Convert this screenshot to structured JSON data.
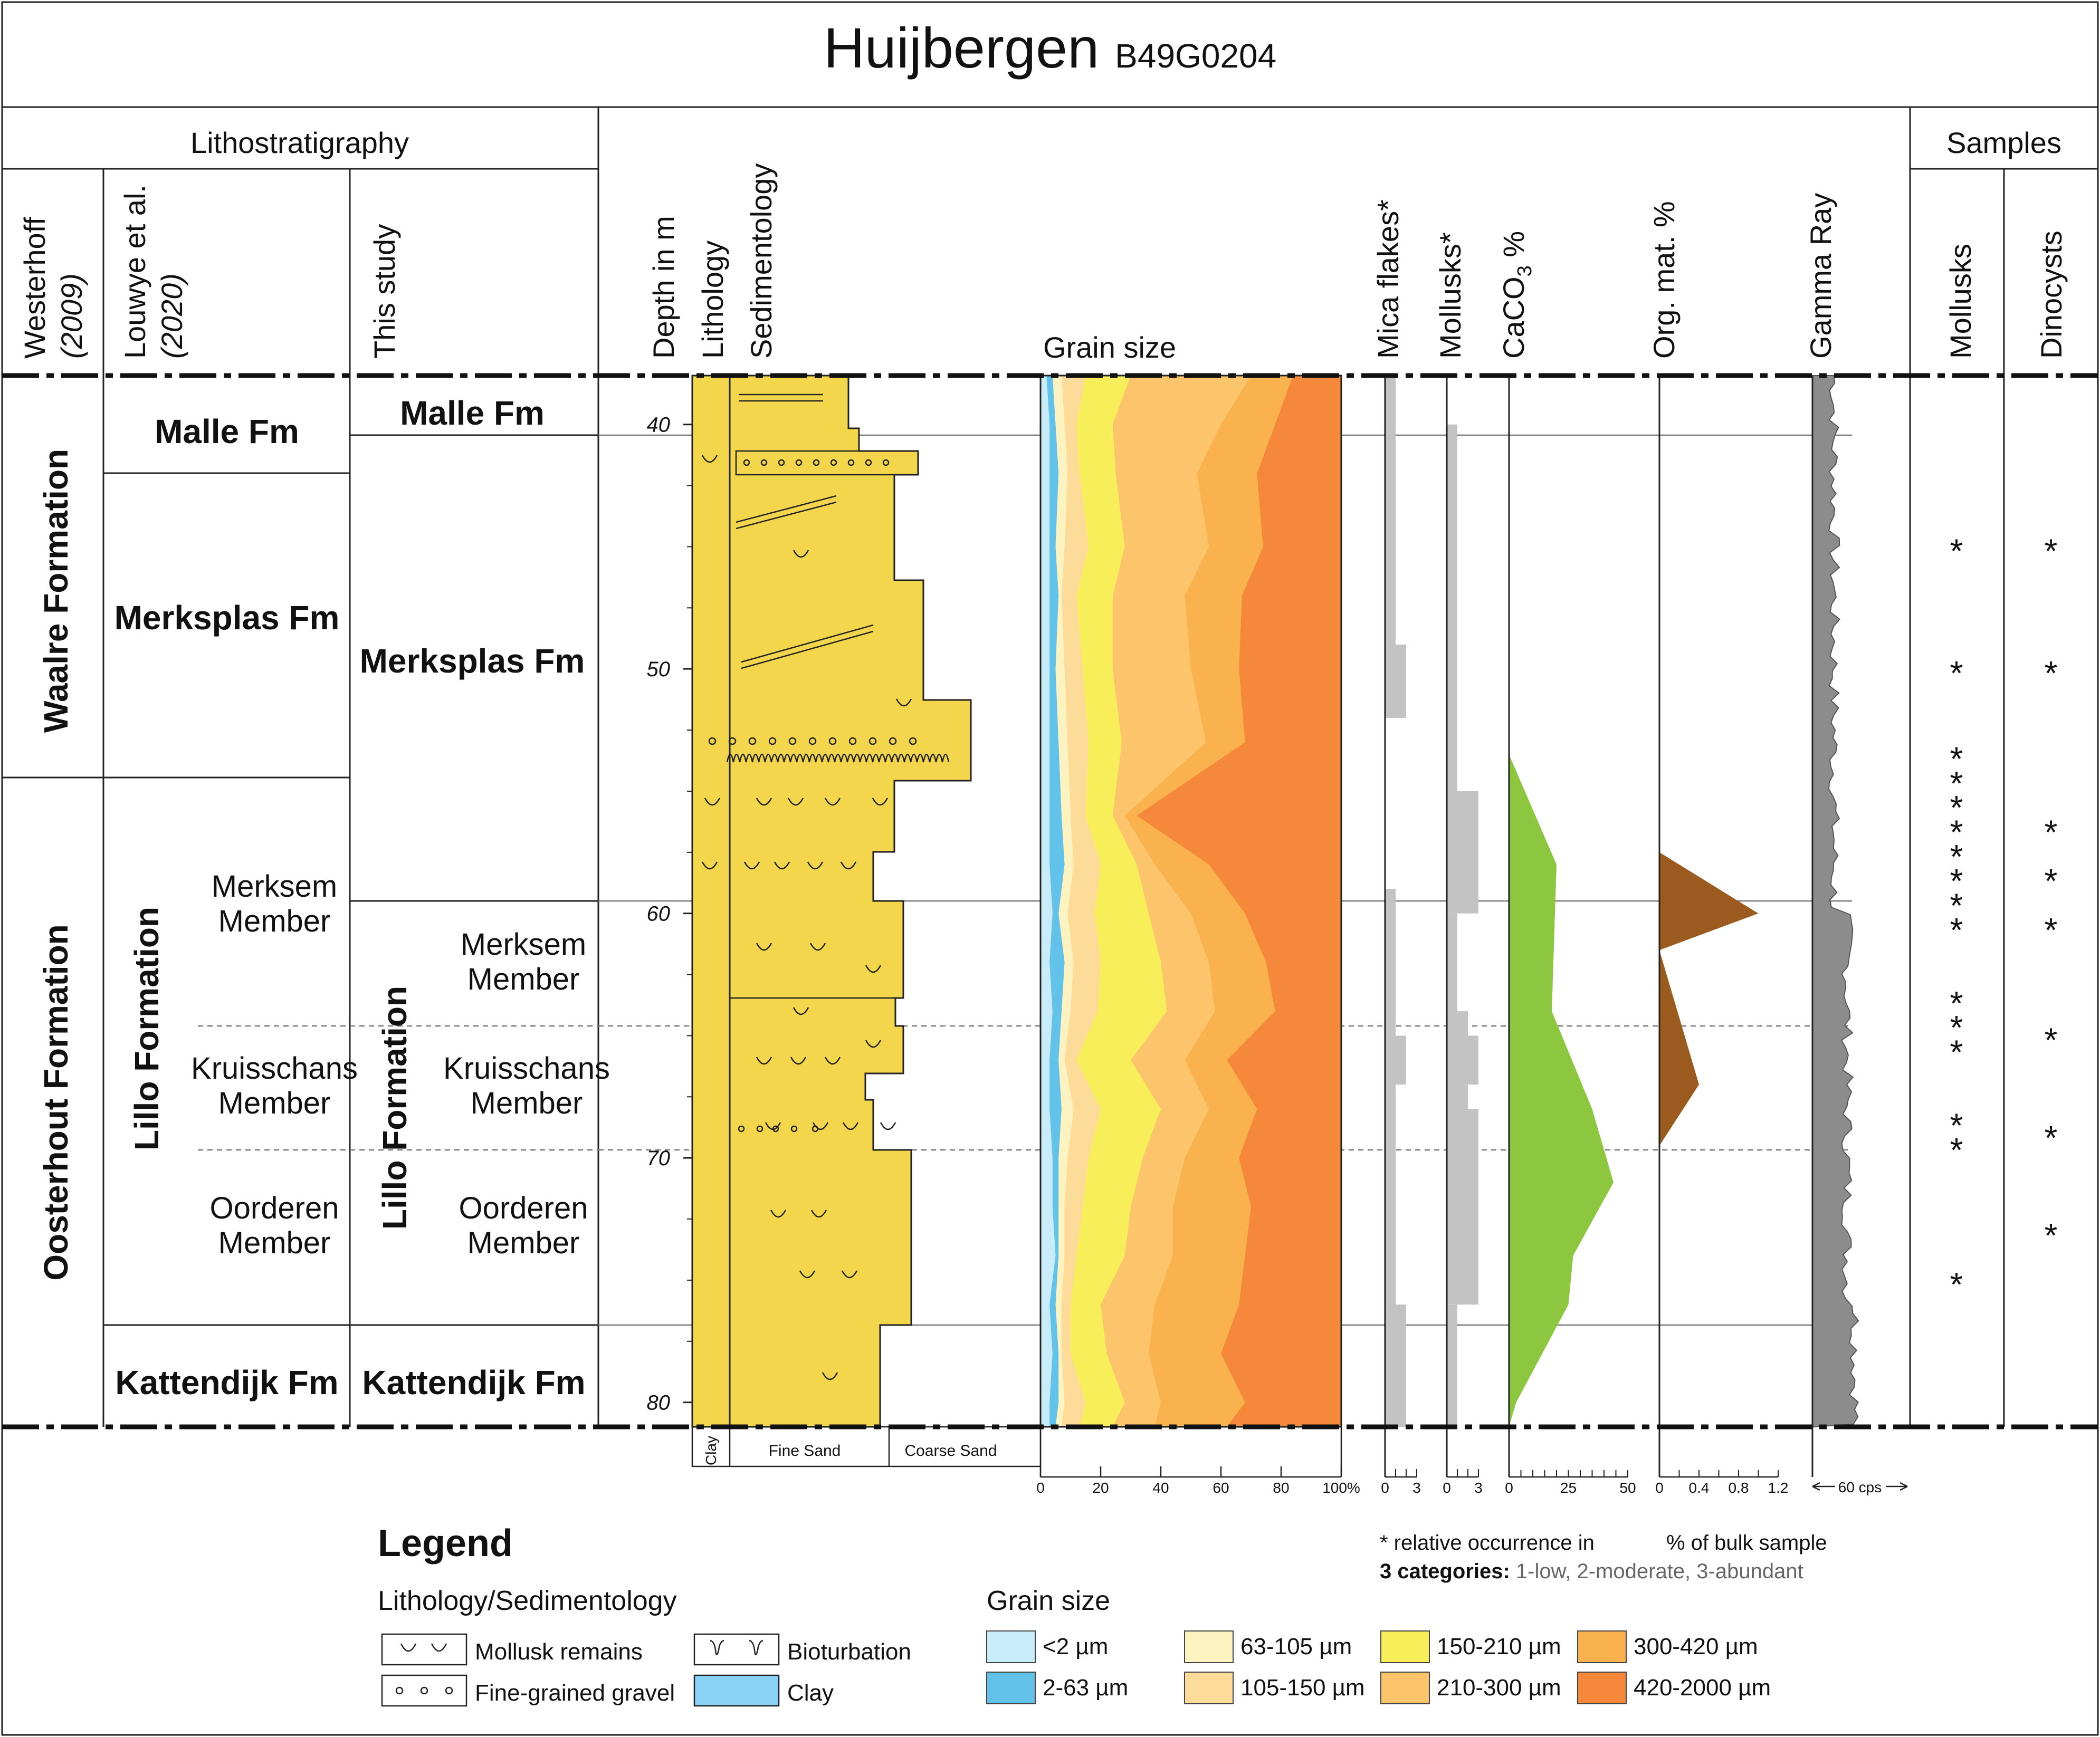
{
  "title": {
    "main": "Huijbergen",
    "code": "B49G0204"
  },
  "headers": {
    "lithostratigraphy": "Lithostratigraphy",
    "samples": "Samples",
    "westerhoff": "Westerhoff",
    "westerhoff_year": "(2009)",
    "louwye": "Louwye et al.",
    "louwye_year": "(2020)",
    "this_study": "This study",
    "depth": "Depth in m",
    "lithology": "Lithology",
    "sedimentology": "Sedimentology",
    "grain_size": "Grain size",
    "mica": "Mica flakes*",
    "mollusks_col": "Mollusks*",
    "caco3": "CaCO",
    "caco3_sub": "3",
    "caco3_unit": " %",
    "orgmat": "Org. mat. %",
    "gamma": "Gamma Ray",
    "mollusks_sample": "Mollusks",
    "dinocysts": "Dinocysts"
  },
  "westerhoff_units": [
    "Waalre Formation",
    "Oosterhout Formation"
  ],
  "louwye_units": {
    "malle": "Malle Fm",
    "merksplas": "Merksplas Fm",
    "lillo": "Lillo Formation",
    "merksem": [
      "Merksem",
      "Member"
    ],
    "kruisschans": [
      "Kruisschans",
      "Member"
    ],
    "oorderen": [
      "Oorderen",
      "Member"
    ],
    "kattendijk": "Kattendijk Fm"
  },
  "study_units": {
    "malle": "Malle Fm",
    "merksplas": "Merksplas Fm",
    "lillo": "Lillo Formation",
    "merksem": [
      "Merksem",
      "Member"
    ],
    "kruisschans": [
      "Kruisschans",
      "Member"
    ],
    "oorderen": [
      "Oorderen",
      "Member"
    ],
    "kattendijk": "Kattendijk Fm"
  },
  "depth_ticks": [
    "40",
    "50",
    "60",
    "70",
    "80"
  ],
  "lith_scale": {
    "clay": "Clay",
    "fine": "Fine Sand",
    "coarse": "Coarse Sand"
  },
  "grain_axis": [
    "0",
    "20",
    "40",
    "60",
    "80",
    "100%"
  ],
  "mica_axis": [
    "0",
    "3"
  ],
  "moll_axis": [
    "0",
    "3"
  ],
  "caco3_axis": [
    "0",
    "25",
    "50"
  ],
  "org_axis": [
    "0",
    "0.4",
    "0.8",
    "1.2"
  ],
  "gamma_axis": "60 cps",
  "notes": {
    "rel": "* relative occurrence in",
    "bulk": "% of bulk sample",
    "cat_bold": "3 categories:",
    "cat_rest": " 1-low, 2-moderate, 3-abundant"
  },
  "legend": {
    "title": "Legend",
    "lith_title": "Lithology/Sedimentology",
    "mollusk": "Mollusk remains",
    "gravel": "Fine-grained gravel",
    "bioturbation": "Bioturbation",
    "clay": "Clay",
    "grain_title": "Grain size",
    "grain_classes": [
      {
        "label": "<2 µm",
        "color": "#c9ecfa"
      },
      {
        "label": "2-63 µm",
        "color": "#62c2ea"
      },
      {
        "label": "63-105 µm",
        "color": "#fdf3c0"
      },
      {
        "label": "105-150 µm",
        "color": "#fddc9a"
      },
      {
        "label": "150-210 µm",
        "color": "#f8ee59"
      },
      {
        "label": "210-300 µm",
        "color": "#fcc46b"
      },
      {
        "label": "300-420 µm",
        "color": "#f9b24d"
      },
      {
        "label": "420-2000 µm",
        "color": "#f5883a"
      }
    ]
  },
  "samples": {
    "mollusks_depths": [
      45,
      50,
      53.5,
      54.5,
      55.5,
      56.5,
      57.5,
      58.5,
      59.5,
      60.5,
      63.5,
      64.5,
      65.5,
      68.5,
      69.5,
      75
    ],
    "dinocysts_depths": [
      45,
      50,
      56.5,
      58.5,
      60.5,
      65,
      69,
      73
    ]
  },
  "chart_data": {
    "depth_range": [
      38,
      81
    ],
    "grain_size_cumulative_percent": {
      "depths": [
        38,
        40,
        42,
        45,
        47,
        50,
        53,
        56,
        58,
        60,
        62,
        64,
        66,
        68,
        70,
        72,
        74,
        76,
        78,
        80,
        81
      ],
      "upper_bounds": {
        "<2 µm": [
          0,
          0,
          0,
          0,
          0,
          0,
          0,
          0,
          0,
          0,
          0,
          0,
          0,
          0,
          0,
          0,
          0,
          0,
          0,
          0,
          0
        ],
        "2-63 µm": [
          2,
          3,
          3,
          3,
          3,
          3,
          3,
          3,
          3,
          4,
          3,
          4,
          3,
          3,
          4,
          4,
          5,
          3,
          4,
          3,
          3
        ],
        "63-105 µm": [
          4,
          5,
          6,
          5,
          6,
          5,
          6,
          7,
          8,
          6,
          8,
          7,
          6,
          7,
          6,
          6,
          6,
          5,
          6,
          6,
          5
        ],
        "105-150 µm": [
          7,
          8,
          9,
          8,
          7,
          8,
          9,
          10,
          11,
          9,
          11,
          10,
          8,
          11,
          9,
          8,
          8,
          7,
          7,
          8,
          7
        ],
        "150-210 µm": [
          15,
          12,
          13,
          16,
          12,
          14,
          16,
          15,
          20,
          18,
          20,
          19,
          12,
          20,
          16,
          14,
          12,
          10,
          10,
          15,
          13
        ],
        "210-300 µm": [
          30,
          24,
          25,
          28,
          24,
          24,
          27,
          24,
          32,
          36,
          40,
          42,
          30,
          40,
          34,
          30,
          28,
          20,
          22,
          28,
          24
        ],
        "300-420 µm": [
          70,
          60,
          52,
          56,
          48,
          50,
          55,
          28,
          38,
          50,
          56,
          58,
          48,
          56,
          48,
          44,
          44,
          38,
          36,
          40,
          38
        ],
        "420-2000 µm": [
          84,
          78,
          72,
          74,
          67,
          66,
          68,
          32,
          56,
          68,
          75,
          78,
          62,
          72,
          66,
          70,
          68,
          66,
          60,
          68,
          62
        ]
      }
    },
    "mica_flakes_category": [
      {
        "from": 38,
        "to": 52,
        "value": 1
      },
      {
        "from": 49,
        "to": 52,
        "value": 2
      },
      {
        "from": 59,
        "to": 81,
        "value": 1
      },
      {
        "from": 65,
        "to": 67,
        "value": 2
      },
      {
        "from": 76,
        "to": 81,
        "value": 2
      }
    ],
    "mollusks_category": [
      {
        "from": 40,
        "to": 55,
        "value": 1
      },
      {
        "from": 55,
        "to": 60,
        "value": 3
      },
      {
        "from": 60,
        "to": 64,
        "value": 1
      },
      {
        "from": 64,
        "to": 65,
        "value": 2
      },
      {
        "from": 65,
        "to": 67,
        "value": 3
      },
      {
        "from": 67,
        "to": 68,
        "value": 2
      },
      {
        "from": 68,
        "to": 76,
        "value": 3
      },
      {
        "from": 76,
        "to": 81,
        "value": 1
      }
    ],
    "caco3_percent": {
      "depths": [
        53.5,
        58,
        64,
        68,
        71,
        74,
        76,
        80,
        81
      ],
      "values": [
        0,
        20,
        18,
        35,
        44,
        27,
        25,
        3,
        0
      ]
    },
    "org_mat_percent": [
      {
        "depths": [
          57.5,
          60,
          61.5
        ],
        "values": [
          0,
          1.0,
          0
        ]
      },
      {
        "depths": [
          61.5,
          67,
          69.5
        ],
        "values": [
          0,
          0.4,
          0
        ]
      }
    ],
    "gamma_ray_unit": "60 cps"
  }
}
